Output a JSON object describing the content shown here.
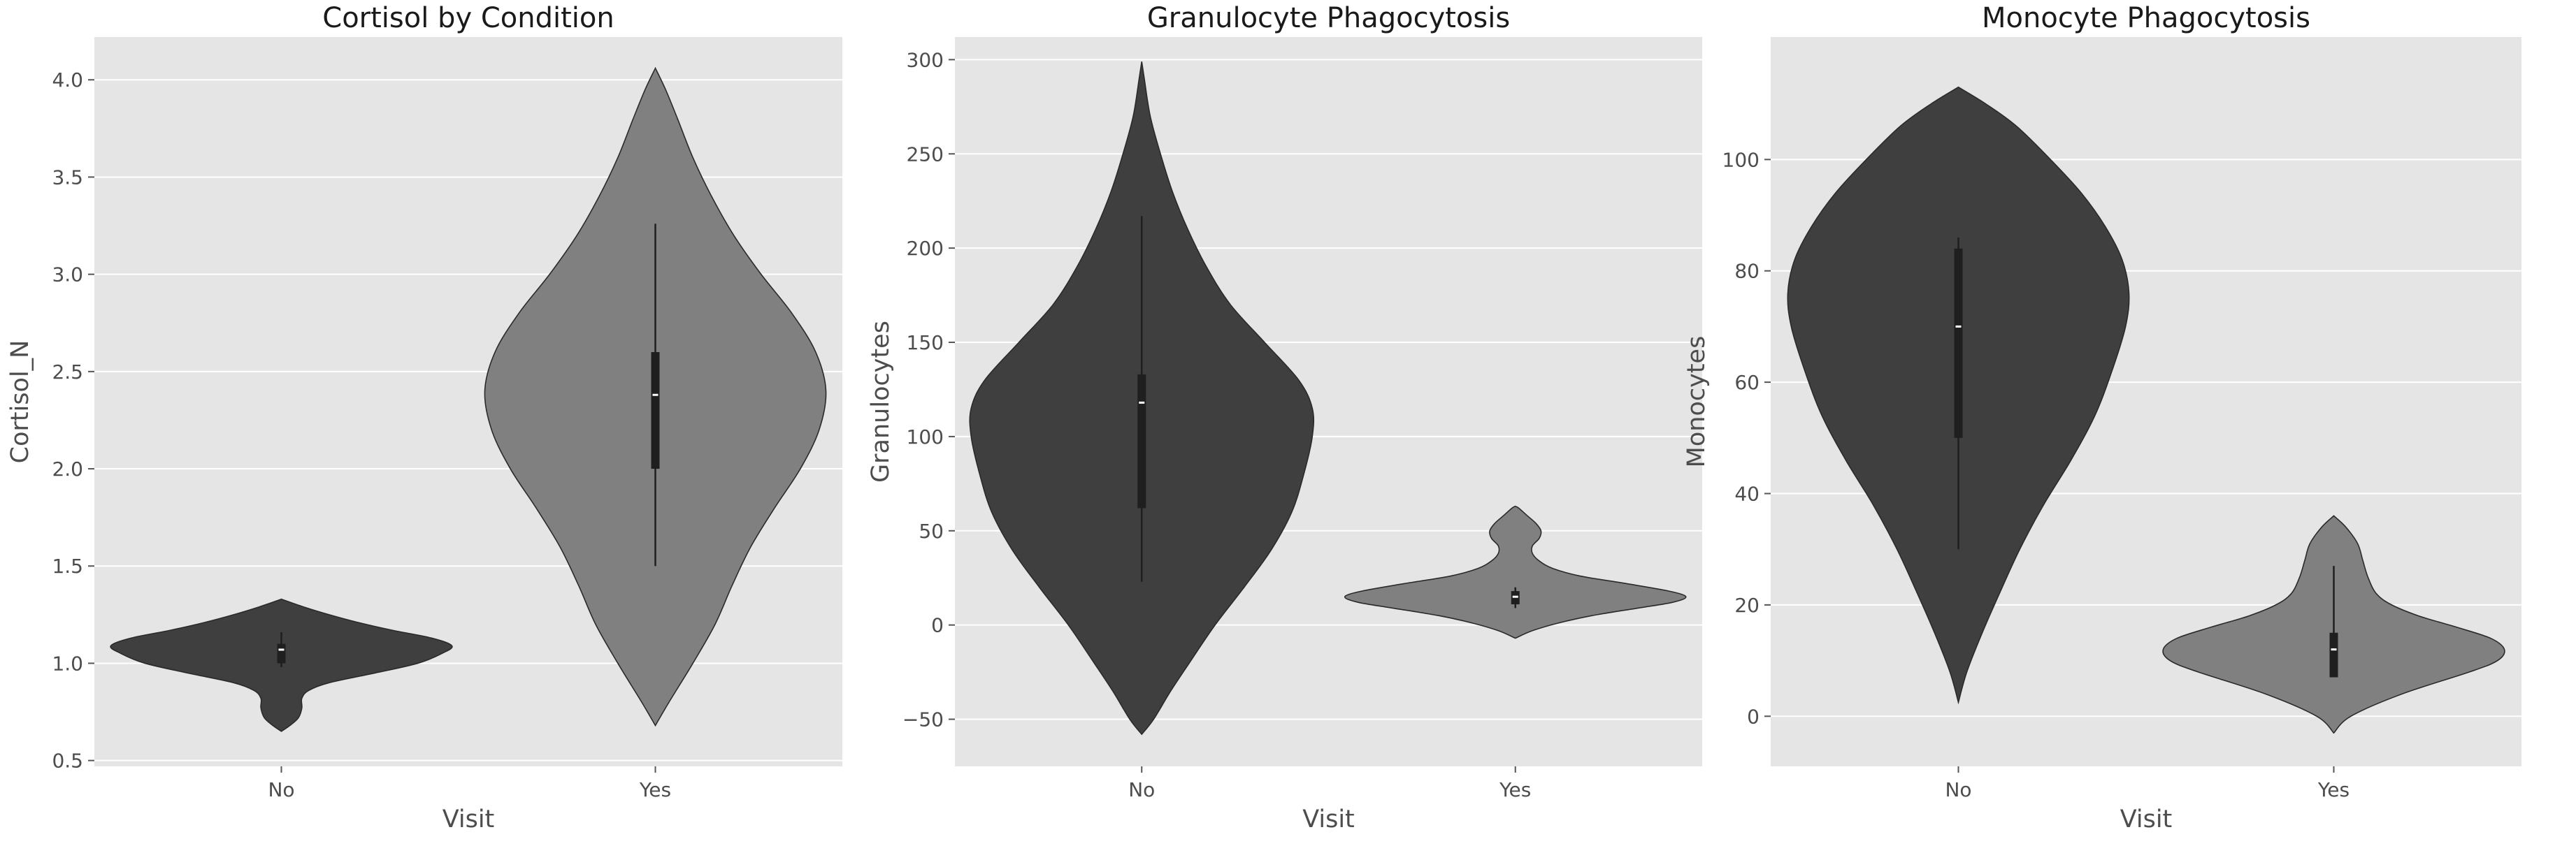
{
  "chart_data": [
    {
      "type": "violin",
      "title": "Cortisol by Condition",
      "xlabel": "Visit",
      "ylabel": "Cortisol_N",
      "categories": [
        "No",
        "Yes"
      ],
      "ylim": [
        0.47,
        4.22
      ],
      "yticks": [
        0.5,
        1.0,
        1.5,
        2.0,
        2.5,
        3.0,
        3.5,
        4.0
      ],
      "ytick_labels": [
        "0.5",
        "1.0",
        "1.5",
        "2.0",
        "2.5",
        "3.0",
        "3.5",
        "4.0"
      ],
      "grid": true,
      "colors": [
        "#3f3f3f",
        "#808080"
      ],
      "violins": [
        {
          "category": "No",
          "whisker": [
            0.98,
            1.16
          ],
          "q1": 1.0,
          "median": 1.07,
          "q3": 1.1,
          "profile": [
            [
              0.65,
              0.0
            ],
            [
              0.68,
              0.05
            ],
            [
              0.72,
              0.1
            ],
            [
              0.77,
              0.12
            ],
            [
              0.82,
              0.12
            ],
            [
              0.86,
              0.16
            ],
            [
              0.9,
              0.28
            ],
            [
              0.95,
              0.55
            ],
            [
              1.0,
              0.8
            ],
            [
              1.05,
              0.94
            ],
            [
              1.09,
              1.0
            ],
            [
              1.13,
              0.88
            ],
            [
              1.17,
              0.65
            ],
            [
              1.21,
              0.45
            ],
            [
              1.25,
              0.28
            ],
            [
              1.29,
              0.13
            ],
            [
              1.33,
              0.0
            ]
          ]
        },
        {
          "category": "Yes",
          "whisker": [
            1.5,
            3.26
          ],
          "q1": 2.0,
          "median": 2.38,
          "q3": 2.6,
          "profile": [
            [
              0.68,
              0.0
            ],
            [
              0.8,
              0.08
            ],
            [
              1.0,
              0.22
            ],
            [
              1.2,
              0.35
            ],
            [
              1.4,
              0.45
            ],
            [
              1.6,
              0.56
            ],
            [
              1.8,
              0.7
            ],
            [
              2.0,
              0.85
            ],
            [
              2.2,
              0.96
            ],
            [
              2.4,
              1.0
            ],
            [
              2.6,
              0.94
            ],
            [
              2.8,
              0.8
            ],
            [
              3.0,
              0.62
            ],
            [
              3.2,
              0.46
            ],
            [
              3.4,
              0.33
            ],
            [
              3.6,
              0.22
            ],
            [
              3.8,
              0.13
            ],
            [
              3.95,
              0.06
            ],
            [
              4.06,
              0.0
            ]
          ]
        }
      ]
    },
    {
      "type": "violin",
      "title": "Granulocyte Phagocytosis",
      "xlabel": "Visit",
      "ylabel": "Granulocytes",
      "categories": [
        "No",
        "Yes"
      ],
      "ylim": [
        -75,
        312
      ],
      "yticks": [
        -50,
        0,
        50,
        100,
        150,
        200,
        250,
        300
      ],
      "ytick_labels": [
        "−50",
        "0",
        "50",
        "100",
        "150",
        "200",
        "250",
        "300"
      ],
      "grid": true,
      "colors": [
        "#3f3f3f",
        "#808080"
      ],
      "violins": [
        {
          "category": "No",
          "whisker": [
            23,
            217
          ],
          "q1": 62,
          "median": 118,
          "q3": 133,
          "profile": [
            [
              -58,
              0.0
            ],
            [
              -50,
              0.07
            ],
            [
              -35,
              0.17
            ],
            [
              -20,
              0.28
            ],
            [
              0,
              0.43
            ],
            [
              20,
              0.6
            ],
            [
              40,
              0.76
            ],
            [
              60,
              0.88
            ],
            [
              80,
              0.95
            ],
            [
              100,
              1.0
            ],
            [
              115,
              1.0
            ],
            [
              130,
              0.92
            ],
            [
              150,
              0.72
            ],
            [
              170,
              0.52
            ],
            [
              190,
              0.38
            ],
            [
              210,
              0.27
            ],
            [
              230,
              0.18
            ],
            [
              250,
              0.11
            ],
            [
              270,
              0.05
            ],
            [
              290,
              0.015
            ],
            [
              299,
              0.0
            ]
          ]
        },
        {
          "category": "Yes",
          "whisker": [
            9,
            20
          ],
          "q1": 11,
          "median": 15,
          "q3": 18,
          "profile": [
            [
              -7,
              0.0
            ],
            [
              -3,
              0.1
            ],
            [
              1,
              0.25
            ],
            [
              5,
              0.45
            ],
            [
              9,
              0.72
            ],
            [
              12,
              0.92
            ],
            [
              15,
              1.0
            ],
            [
              18,
              0.9
            ],
            [
              22,
              0.65
            ],
            [
              26,
              0.38
            ],
            [
              30,
              0.22
            ],
            [
              34,
              0.14
            ],
            [
              38,
              0.1
            ],
            [
              42,
              0.1
            ],
            [
              46,
              0.14
            ],
            [
              50,
              0.15
            ],
            [
              54,
              0.12
            ],
            [
              58,
              0.07
            ],
            [
              62,
              0.02
            ],
            [
              63,
              0.0
            ]
          ]
        }
      ]
    },
    {
      "type": "violin",
      "title": "Monocyte Phagocytosis",
      "xlabel": "Visit",
      "ylabel": "Monocytes",
      "categories": [
        "No",
        "Yes"
      ],
      "ylim": [
        -9,
        122
      ],
      "yticks": [
        0,
        20,
        40,
        60,
        80,
        100
      ],
      "ytick_labels": [
        "0",
        "20",
        "40",
        "60",
        "80",
        "100"
      ],
      "grid": true,
      "colors": [
        "#3f3f3f",
        "#808080"
      ],
      "violins": [
        {
          "category": "No",
          "whisker": [
            30,
            86
          ],
          "q1": 50,
          "median": 70,
          "q3": 84,
          "profile": [
            [
              2.5,
              0.0
            ],
            [
              8,
              0.05
            ],
            [
              15,
              0.14
            ],
            [
              22,
              0.24
            ],
            [
              30,
              0.36
            ],
            [
              38,
              0.5
            ],
            [
              46,
              0.66
            ],
            [
              54,
              0.8
            ],
            [
              62,
              0.9
            ],
            [
              70,
              0.98
            ],
            [
              76,
              1.0
            ],
            [
              82,
              0.96
            ],
            [
              88,
              0.86
            ],
            [
              94,
              0.72
            ],
            [
              100,
              0.54
            ],
            [
              106,
              0.34
            ],
            [
              110,
              0.16
            ],
            [
              113,
              0.0
            ]
          ]
        },
        {
          "category": "Yes",
          "whisker": [
            7,
            27
          ],
          "q1": 7,
          "median": 12,
          "q3": 15,
          "profile": [
            [
              -3,
              0.0
            ],
            [
              0,
              0.1
            ],
            [
              4,
              0.4
            ],
            [
              8,
              0.8
            ],
            [
              10,
              0.96
            ],
            [
              12,
              1.0
            ],
            [
              14,
              0.92
            ],
            [
              16,
              0.72
            ],
            [
              18,
              0.5
            ],
            [
              20,
              0.34
            ],
            [
              22,
              0.25
            ],
            [
              25,
              0.2
            ],
            [
              28,
              0.17
            ],
            [
              31,
              0.14
            ],
            [
              34,
              0.07
            ],
            [
              36,
              0.0
            ]
          ]
        }
      ]
    }
  ]
}
